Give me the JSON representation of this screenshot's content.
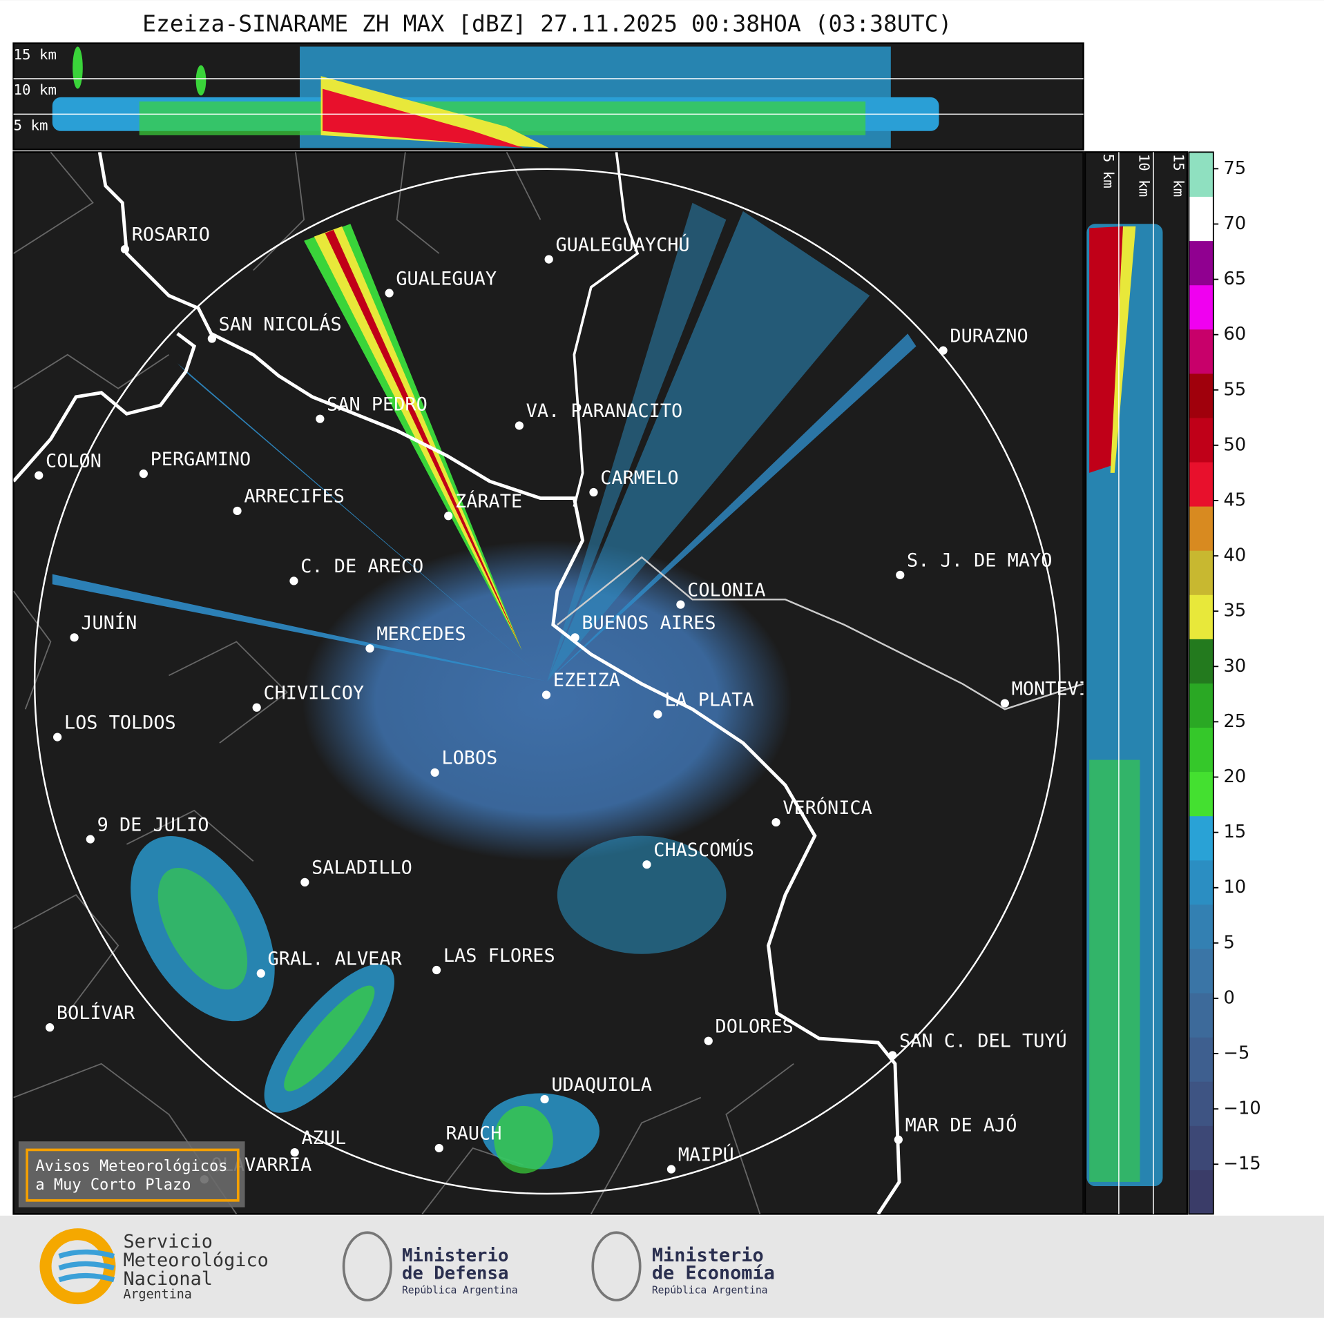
{
  "header": {
    "title": "Ezeiza-SINARAME ZH MAX [dBZ] 27.11.2025 00:38HOA (03:38UTC)"
  },
  "cross_section": {
    "height_labels": [
      "15 km",
      "10 km",
      "5 km"
    ]
  },
  "map": {
    "cities": [
      {
        "name": "ROSARIO"
      },
      {
        "name": "GUALEGUAYCHÚ"
      },
      {
        "name": "GUALEGUAY"
      },
      {
        "name": "SAN NICOLÁS"
      },
      {
        "name": "DURAZNO"
      },
      {
        "name": "SAN PEDRO"
      },
      {
        "name": "VA. PARANACITO"
      },
      {
        "name": "COLON"
      },
      {
        "name": "PERGAMINO"
      },
      {
        "name": "CARMELO"
      },
      {
        "name": "ARRECIFES"
      },
      {
        "name": "ZÁRATE"
      },
      {
        "name": "S. J. DE MAYO"
      },
      {
        "name": "C. DE ARECO"
      },
      {
        "name": "COLONIA"
      },
      {
        "name": "BUENOS AIRES"
      },
      {
        "name": "JUNÍN"
      },
      {
        "name": "MERCEDES"
      },
      {
        "name": "EZEIZA"
      },
      {
        "name": "MONTEVIDEO"
      },
      {
        "name": "CHIVILCOY"
      },
      {
        "name": "LA PLATA"
      },
      {
        "name": "LOS TOLDOS"
      },
      {
        "name": "LOBOS"
      },
      {
        "name": "VERÓNICA"
      },
      {
        "name": "9 DE JULIO"
      },
      {
        "name": "CHASCOMÚS"
      },
      {
        "name": "SALADILLO"
      },
      {
        "name": "GRAL. ALVEAR"
      },
      {
        "name": "LAS FLORES"
      },
      {
        "name": "BOLÍVAR"
      },
      {
        "name": "DOLORES"
      },
      {
        "name": "SAN C. DEL TUYÚ"
      },
      {
        "name": "UDAQUIOLA"
      },
      {
        "name": "MAR DE AJÓ"
      },
      {
        "name": "AZUL"
      },
      {
        "name": "RAUCH"
      },
      {
        "name": "OLAVARRÍA"
      },
      {
        "name": "MAIPÚ"
      }
    ]
  },
  "colorbar": {
    "lim": [
      -19.5,
      76.5
    ],
    "ticks": [
      75,
      70,
      65,
      60,
      55,
      50,
      45,
      40,
      35,
      30,
      25,
      20,
      15,
      10,
      5,
      0,
      {
        "value": -5,
        "label": "−5"
      },
      {
        "value": -10,
        "label": "−10"
      },
      {
        "value": -15,
        "label": "−15"
      }
    ],
    "colors": [
      "#3a3c68",
      "#3d4876",
      "#3e5483",
      "#3e5f8f",
      "#3d6a9a",
      "#3a75a6",
      "#3380b2",
      "#2b8ec2",
      "#29a2d6",
      "#44e030",
      "#35c82a",
      "#2aa824",
      "#237a1e",
      "#e8e83a",
      "#c8b830",
      "#d88a20",
      "#e8102c",
      "#c00018",
      "#a0000c",
      "#c8006a",
      "#f000f0",
      "#900090",
      "#ffffff",
      "#8fe0c0"
    ]
  },
  "warning_box": {
    "lines": [
      "Avisos Meteorológicos",
      "a Muy Corto Plazo"
    ]
  },
  "logos": [
    {
      "lines": [
        "Servicio",
        "Meteorológico",
        "Nacional",
        "Argentina"
      ]
    },
    {
      "lines": [
        "Ministerio",
        "de Defensa",
        "República Argentina"
      ]
    },
    {
      "lines": [
        "Ministerio",
        "de Economía",
        "República Argentina"
      ]
    }
  ]
}
